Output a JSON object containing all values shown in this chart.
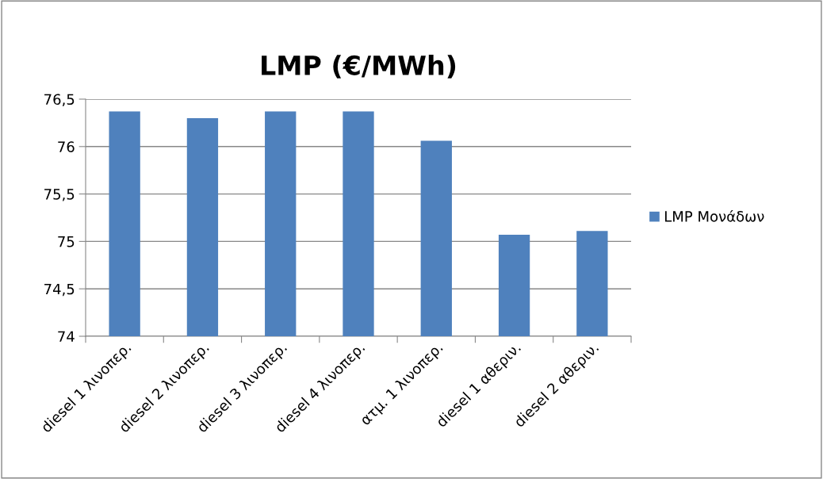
{
  "chart_data": {
    "type": "bar",
    "title": "LMP (€/MWh)",
    "categories": [
      "diesel 1 λινοπερ.",
      "diesel 2 λινοπερ.",
      "diesel 3 λινοπερ.",
      "diesel 4 λινοπερ.",
      "ατμ. 1 λινοπερ.",
      "diesel 1 αθεριν.",
      "diesel 2 αθεριν."
    ],
    "series": [
      {
        "name": "LMP Μονάδων",
        "color": "#4f81bd",
        "values": [
          76.37,
          76.3,
          76.37,
          76.37,
          76.06,
          75.07,
          75.11
        ]
      }
    ],
    "ylim": [
      74,
      76.5
    ],
    "yticks": [
      {
        "value": 74,
        "label": "74"
      },
      {
        "value": 74.5,
        "label": "74,5"
      },
      {
        "value": 75,
        "label": "75"
      },
      {
        "value": 75.5,
        "label": "75,5"
      },
      {
        "value": 76,
        "label": "76"
      },
      {
        "value": 76.5,
        "label": "76,5"
      }
    ],
    "grid": "y",
    "legend": "right"
  }
}
